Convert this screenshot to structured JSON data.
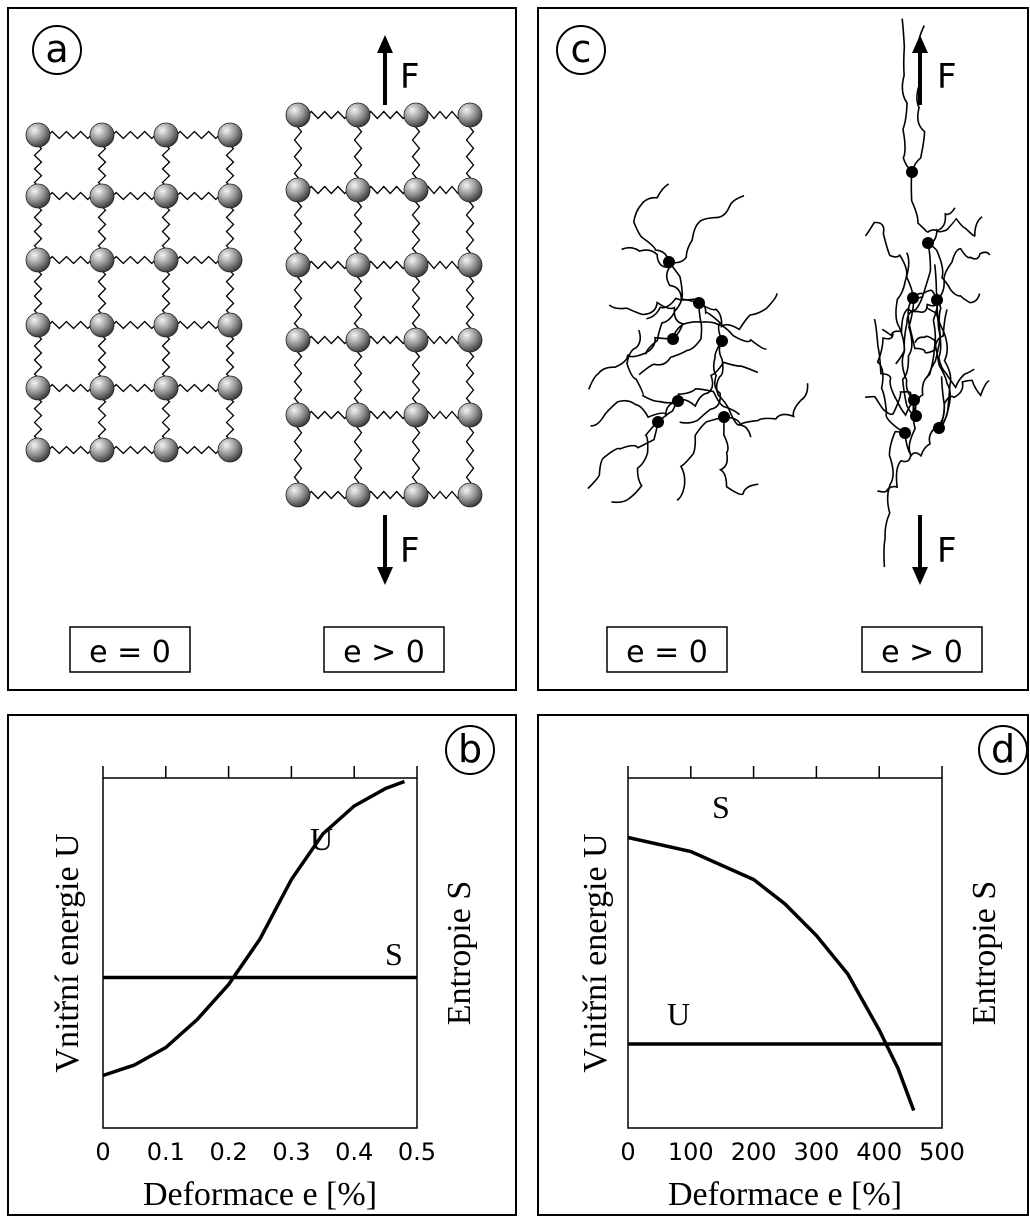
{
  "diagram_panels": [
    {
      "label": "a",
      "force_top": "F",
      "force_bottom": "F",
      "states": [
        "e = 0",
        "e > 0"
      ]
    },
    {
      "label": "c",
      "force_top": "F",
      "force_bottom": "F",
      "states": [
        "e = 0",
        "e > 0"
      ]
    }
  ],
  "chart_data": [
    {
      "type": "line",
      "label": "b",
      "x_label": "Deformace  e  [%]",
      "y_label": "Vnitřní energie  U",
      "y2_label": "Entropie  S",
      "xlim": [
        0,
        0.5
      ],
      "xticks": [
        0,
        0.1,
        0.2,
        0.3,
        0.4,
        0.5
      ],
      "ylim": [
        0,
        1
      ],
      "series": [
        {
          "name": "U",
          "color": "#000000",
          "x": [
            0,
            0.05,
            0.1,
            0.15,
            0.2,
            0.25,
            0.3,
            0.35,
            0.4,
            0.45,
            0.48
          ],
          "values": [
            0.15,
            0.18,
            0.23,
            0.31,
            0.41,
            0.54,
            0.71,
            0.84,
            0.92,
            0.97,
            0.99
          ]
        },
        {
          "name": "S",
          "color": "#000000",
          "x": [
            0,
            0.5
          ],
          "values": [
            0.43,
            0.43
          ]
        }
      ]
    },
    {
      "type": "line",
      "label": "d",
      "x_label": "Deformace  e  [%]",
      "y_label": "Vnitřní energie  U",
      "y2_label": "Entropie  S",
      "xlim": [
        0,
        500
      ],
      "xticks": [
        0,
        100,
        200,
        300,
        400,
        500
      ],
      "ylim": [
        0,
        1
      ],
      "series": [
        {
          "name": "S",
          "color": "#000000",
          "x": [
            0,
            100,
            200,
            250,
            300,
            350,
            400,
            430,
            455
          ],
          "values": [
            0.83,
            0.79,
            0.71,
            0.64,
            0.55,
            0.44,
            0.28,
            0.17,
            0.05
          ]
        },
        {
          "name": "U",
          "color": "#000000",
          "x": [
            0,
            500
          ],
          "values": [
            0.24,
            0.24
          ]
        }
      ]
    }
  ]
}
